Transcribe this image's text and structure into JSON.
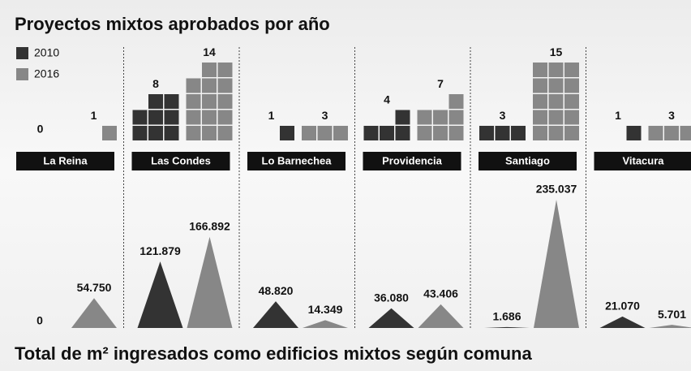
{
  "chart_data": [
    {
      "type": "waffle",
      "title": "Proyectos mixtos aprobados por año",
      "categories": [
        "La Reina",
        "Las Condes",
        "Lo Barnechea",
        "Providencia",
        "Santiago",
        "Vitacura"
      ],
      "series": [
        {
          "name": "2010",
          "color": "#333333",
          "values": [
            0,
            8,
            1,
            4,
            3,
            1
          ]
        },
        {
          "name": "2016",
          "color": "#878787",
          "values": [
            1,
            14,
            3,
            7,
            15,
            3
          ]
        }
      ]
    },
    {
      "type": "triangle",
      "title": "Total de m² ingresados como edificios mixtos según comuna",
      "series": [
        {
          "name": "2010",
          "color": "#333333",
          "values": [
            0,
            121879,
            48820,
            36080,
            1686,
            21070
          ],
          "value_labels": [
            "0",
            "121.879",
            "48.820",
            "36.080",
            "1.686",
            "21.070"
          ]
        },
        {
          "name": "2016",
          "color": "#878787",
          "values": [
            54750,
            166892,
            14349,
            43406,
            235037,
            5701
          ],
          "value_labels": [
            "54.750",
            "166.892",
            "14.349",
            "43.406",
            "235.037",
            "5.701"
          ]
        }
      ]
    }
  ]
}
